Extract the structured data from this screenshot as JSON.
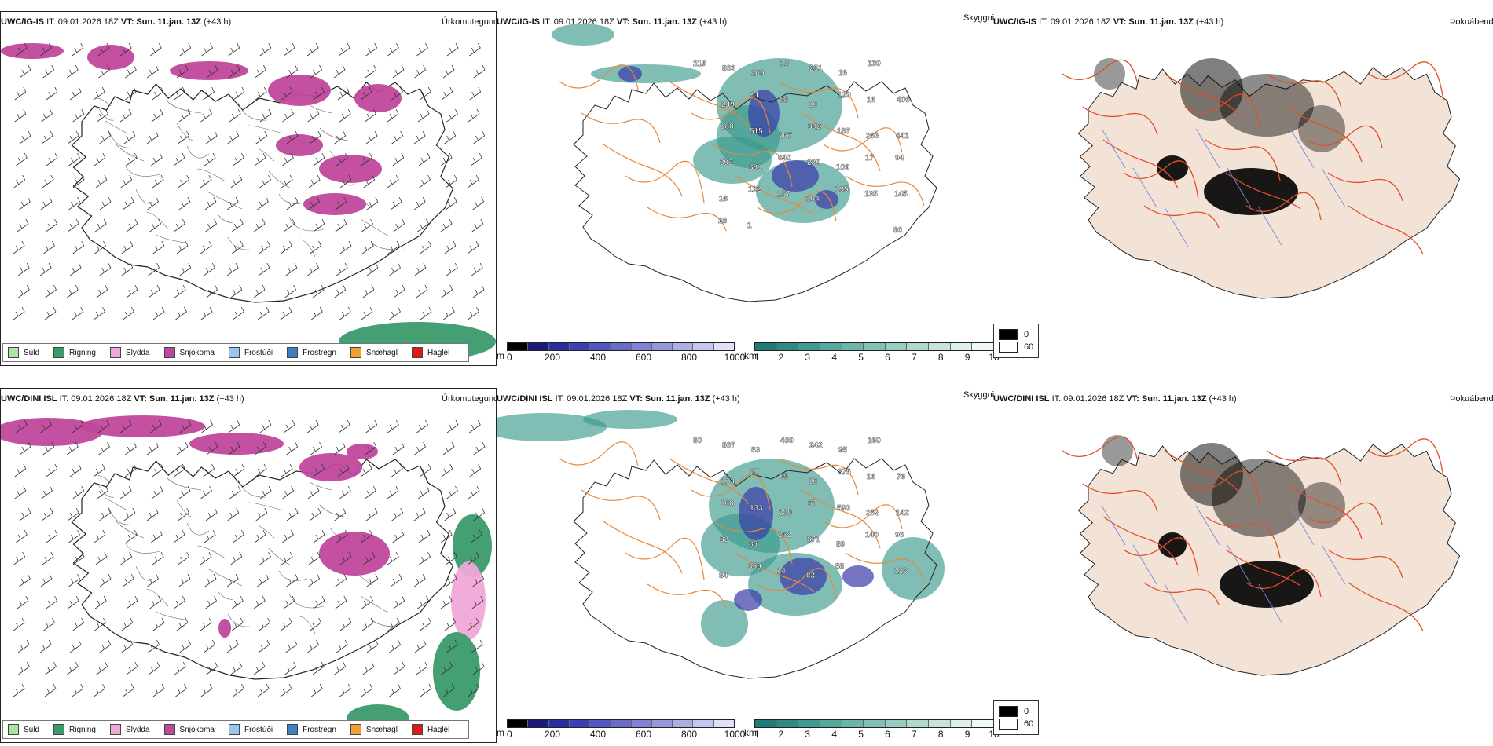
{
  "rows": [
    {
      "model": "UWC/IG-IS",
      "it": "IT: 09.01.2026 18Z",
      "vt_label": "VT:",
      "vt": "Sun. 11.jan. 13Z",
      "lead": "(+43 h)",
      "vis_labels": [
        "215",
        "863",
        "200",
        "18",
        "251",
        "16",
        "139",
        "406",
        "249",
        "91",
        "88",
        "10",
        "129",
        "16",
        "441",
        "188",
        "515",
        "267",
        "392",
        "187",
        "263",
        "94",
        "393",
        "391",
        "640",
        "239",
        "109",
        "17",
        "145",
        "16",
        "122",
        "157",
        "104",
        "195",
        "135",
        "80",
        "28",
        "1"
      ],
      "snow_blobs": "north"
    },
    {
      "model": "UWC/DINI ISL",
      "it": "IT: 09.01.2026 18Z",
      "vt_label": "VT:",
      "vt": "Sun. 11.jan. 13Z",
      "lead": "(+43 h)",
      "vis_labels": [
        "80",
        "867",
        "83",
        "409",
        "242",
        "95",
        "169",
        "76",
        "173",
        "87",
        "95",
        "10",
        "375",
        "16",
        "142",
        "168",
        "133",
        "280",
        "67",
        "590",
        "252",
        "96",
        "32",
        "86",
        "262",
        "871",
        "89",
        "140",
        "123",
        "84",
        "359",
        "18",
        "83",
        "88"
      ],
      "snow_blobs": "north-wide"
    }
  ],
  "panel_titles": {
    "ptype": "Úrkomutegund",
    "vis": "Skyggni",
    "fog": "Þokuábendi"
  },
  "ptype_legend": [
    {
      "label": "Súld",
      "color": "#a8e6a0"
    },
    {
      "label": "Rigning",
      "color": "#3a9a6a"
    },
    {
      "label": "Slydda",
      "color": "#f0a8d8"
    },
    {
      "label": "Snjókoma",
      "color": "#c0479c"
    },
    {
      "label": "Frostúði",
      "color": "#9cc4f0"
    },
    {
      "label": "Frostregn",
      "color": "#3f7fc4"
    },
    {
      "label": "Snæhagl",
      "color": "#f0a030"
    },
    {
      "label": "Haglél",
      "color": "#e01818"
    }
  ],
  "vis_m_bar": {
    "unit": "m",
    "ticks": [
      "0",
      "200",
      "400",
      "600",
      "800",
      "1000"
    ],
    "colors": [
      "#000000",
      "#1a1a7a",
      "#2a2ea0",
      "#3e3eb4",
      "#5454c2",
      "#6a6ccc",
      "#8082d4",
      "#9698dc",
      "#acaee4",
      "#c4c6ee",
      "#e0e0f6"
    ]
  },
  "vis_km_bar": {
    "unit": "km",
    "ticks": [
      "1",
      "2",
      "3",
      "4",
      "5",
      "6",
      "7",
      "8",
      "9",
      "10"
    ],
    "colors": [
      "#1f7a7a",
      "#2f8a86",
      "#3f9a90",
      "#55a89c",
      "#6bb6a8",
      "#82c2b4",
      "#98ccc0",
      "#afd8ce",
      "#c6e4dc",
      "#dcefea",
      "#f2f8f6"
    ]
  },
  "fog_legend": [
    {
      "label": "0",
      "color": "#000000"
    },
    {
      "label": "60",
      "color": "#ffffff"
    }
  ],
  "colors": {
    "snow": "#c0479c",
    "rain": "#3a9a6a",
    "sleet": "#f0a8d8",
    "teal": "#3a9a8e",
    "blue": "#3a3aa8",
    "road": "#e8883a",
    "fogland": "#f3e3d6",
    "fogroad": "#e0502a"
  }
}
